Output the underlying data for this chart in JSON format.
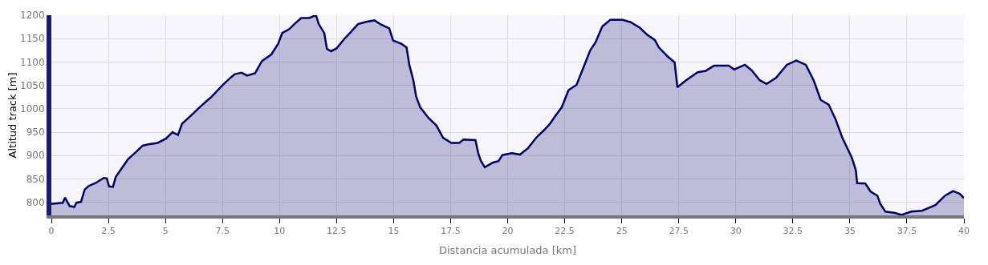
{
  "chart_data": {
    "type": "area",
    "xlabel": "Distancia acumulada [km]",
    "ylabel": "Altitud track [m]",
    "xlim": [
      0,
      40
    ],
    "xticks": [
      0,
      2.5,
      5,
      7.5,
      10,
      12.5,
      15,
      17.5,
      20,
      22.5,
      25,
      27.5,
      30,
      32.5,
      35,
      37.5,
      40
    ],
    "ylim": [
      772,
      1200
    ],
    "yticks": [
      800,
      850,
      900,
      950,
      1000,
      1050,
      1100,
      1150,
      1200
    ],
    "grid": true,
    "marker": "none",
    "series": [
      {
        "color": "#000066",
        "x": [
          0,
          0.07,
          0.5,
          0.6,
          0.8,
          1.0,
          1.1,
          1.3,
          1.46,
          1.64,
          1.93,
          2.3,
          2.43,
          2.53,
          2.7,
          2.82,
          3.06,
          3.36,
          3.7,
          4.0,
          4.25,
          4.66,
          5.02,
          5.31,
          5.55,
          5.73,
          6.09,
          6.56,
          7.03,
          7.51,
          7.87,
          8.04,
          8.34,
          8.58,
          8.93,
          9.23,
          9.64,
          9.94,
          10.12,
          10.42,
          10.65,
          10.95,
          11.3,
          11.6,
          11.72,
          11.96,
          12.08,
          12.26,
          12.5,
          12.85,
          13.09,
          13.44,
          13.8,
          14.16,
          14.45,
          14.81,
          14.98,
          15.34,
          15.57,
          15.69,
          15.87,
          15.99,
          16.17,
          16.52,
          16.88,
          17.17,
          17.53,
          17.88,
          18.06,
          18.59,
          18.71,
          18.83,
          19.0,
          19.36,
          19.6,
          19.77,
          20.19,
          20.54,
          20.9,
          21.25,
          21.61,
          21.84,
          22.08,
          22.37,
          22.67,
          23.02,
          23.32,
          23.62,
          23.85,
          24.15,
          24.5,
          25.04,
          25.39,
          25.8,
          26.1,
          26.45,
          26.63,
          27.03,
          27.32,
          27.44,
          27.8,
          28.33,
          28.68,
          29.04,
          29.69,
          29.93,
          30.4,
          30.7,
          31.05,
          31.35,
          31.76,
          32.24,
          32.65,
          33.07,
          33.42,
          33.72,
          34.07,
          34.37,
          34.67,
          35.08,
          35.26,
          35.32,
          35.68,
          35.91,
          36.21,
          36.33,
          36.56,
          36.98,
          37.27,
          37.69,
          38.16,
          38.75,
          39.17,
          39.52,
          39.82,
          40
        ],
        "values": [
          797,
          797,
          799,
          810,
          792,
          790,
          799,
          801,
          827,
          835,
          841,
          852,
          851,
          834,
          833,
          854,
          871,
          892,
          907,
          921,
          924,
          927,
          936,
          950,
          944,
          968,
          984,
          1006,
          1026,
          1051,
          1067,
          1074,
          1077,
          1071,
          1076,
          1102,
          1116,
          1139,
          1162,
          1170,
          1181,
          1194,
          1194,
          1200,
          1181,
          1162,
          1128,
          1123,
          1129,
          1150,
          1162,
          1181,
          1186,
          1189,
          1180,
          1172,
          1146,
          1139,
          1131,
          1094,
          1060,
          1026,
          1003,
          981,
          964,
          938,
          927,
          927,
          934,
          933,
          905,
          888,
          875,
          885,
          888,
          901,
          905,
          902,
          916,
          938,
          955,
          967,
          984,
          1003,
          1040,
          1051,
          1088,
          1125,
          1142,
          1176,
          1190,
          1190,
          1185,
          1173,
          1159,
          1147,
          1131,
          1111,
          1099,
          1046,
          1060,
          1078,
          1081,
          1092,
          1092,
          1084,
          1094,
          1082,
          1061,
          1053,
          1066,
          1094,
          1103,
          1094,
          1060,
          1019,
          1009,
          978,
          938,
          896,
          869,
          841,
          840,
          823,
          814,
          797,
          780,
          777,
          773,
          780,
          782,
          794,
          814,
          824,
          818,
          809
        ]
      }
    ]
  }
}
